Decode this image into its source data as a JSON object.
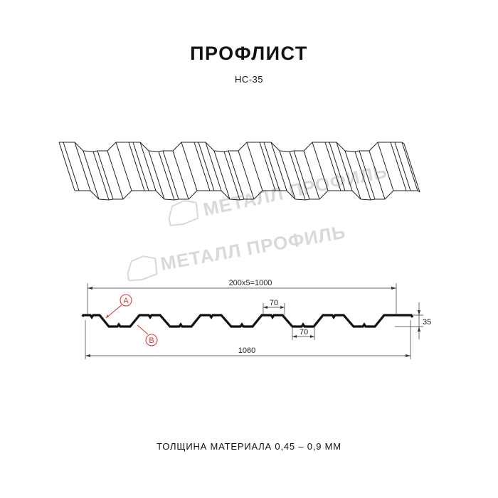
{
  "header": {
    "title": "ПРОФЛИСТ",
    "subtitle": "НС-35"
  },
  "watermark": {
    "text": "МЕТАЛЛ ПРОФИЛЬ",
    "color": "#d9d9d9"
  },
  "drawing": {
    "pitch_label": "200x5=1000",
    "crest_width_label": "70",
    "valley_width_label": "70",
    "height_label": "35",
    "total_width_label": "1060",
    "marker_a": "A",
    "marker_b": "B",
    "marker_color": "#e03030",
    "profile_color": "#111111"
  },
  "footer": {
    "thickness_text": "ТОЛЩИНА МАТЕРИАЛА 0,45 – 0,9 ММ"
  }
}
